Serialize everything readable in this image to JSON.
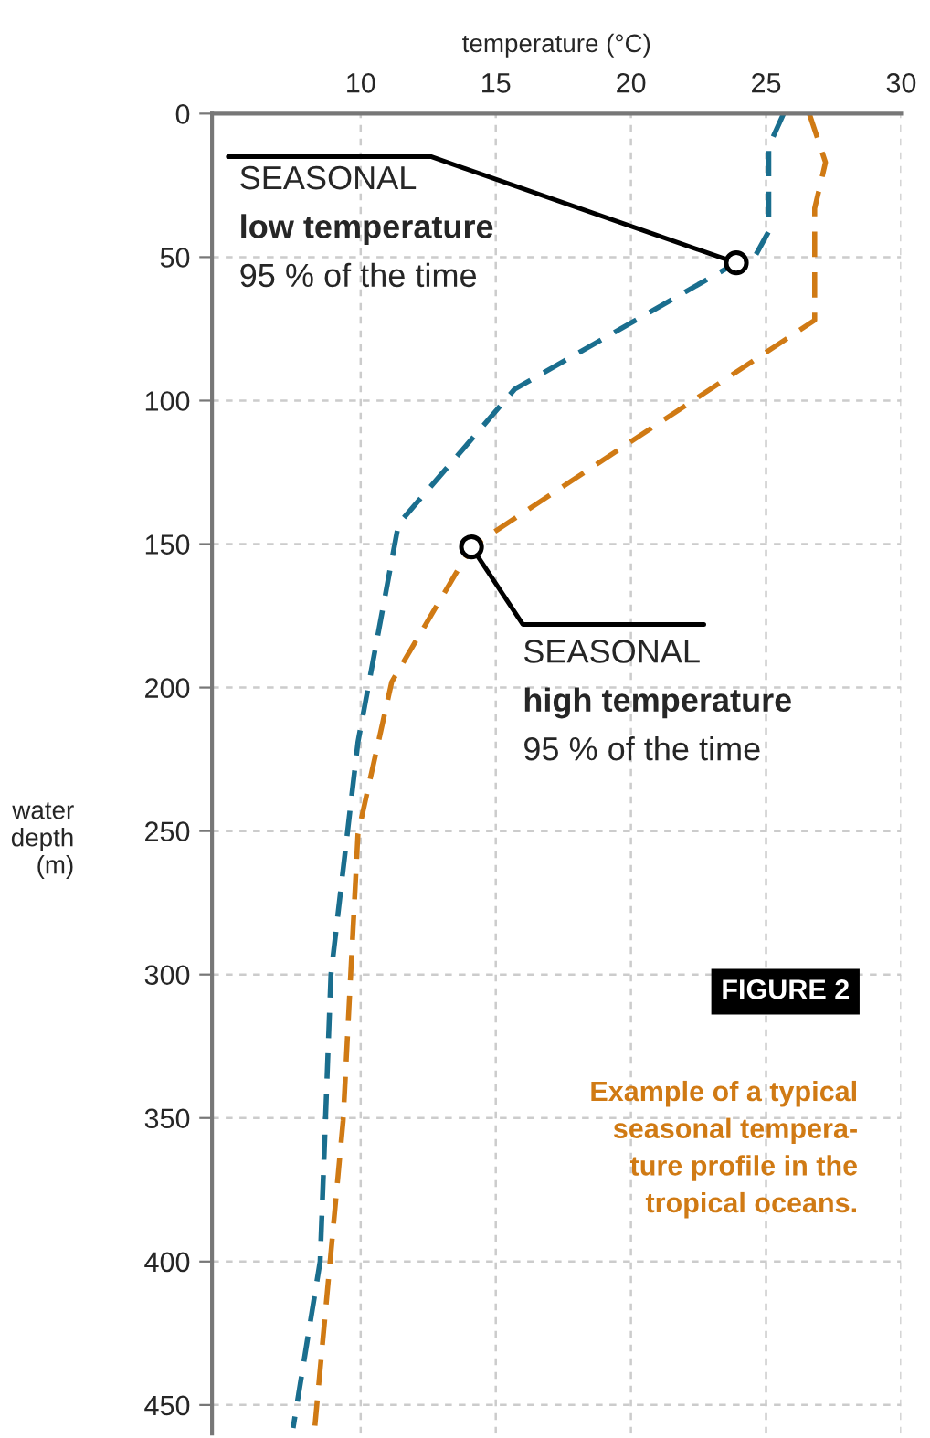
{
  "chart_data": {
    "type": "line",
    "title": "Example of a typical\nseasonal tempera-\nture profile in the\ntropical oceans.",
    "subtitle": "FIGURE 2",
    "xlabel": "temperature (°C)",
    "ylabel": "water\ndepth\n(m)",
    "series": [
      {
        "color": "#1a6e8e",
        "x": [
          25.65,
          25.1,
          25.1,
          24.6,
          23.9,
          15.7,
          11.4,
          9.9,
          8.9,
          8.5,
          7.5
        ],
        "values": [
          0,
          11.5,
          41,
          49.6,
          52,
          96,
          143,
          219,
          300,
          400,
          458
        ]
      },
      {
        "color": "#d07a14",
        "x": [
          26.6,
          27.2,
          26.8,
          26.8,
          14.1,
          11.15,
          9.9,
          9.35,
          8.3
        ],
        "values": [
          0,
          17,
          33,
          72,
          151,
          198,
          251,
          351,
          458
        ]
      }
    ],
    "annotations": [
      {
        "text": "SEASONAL",
        "x": 23.9,
        "y": 52
      },
      "low temperature",
      "95 % of the time",
      {
        "text": "SEASONAL",
        "x": 14.1,
        "y": 151
      },
      "high temperature",
      "95 % of the time"
    ],
    "xlim": [
      4.5,
      30
    ],
    "ylim": [
      460,
      0
    ],
    "xticks": [
      10,
      15,
      20,
      25,
      30
    ],
    "yticks": [
      0,
      50,
      100,
      150,
      200,
      250,
      300,
      350,
      400,
      450
    ],
    "grid": true,
    "legend": false,
    "line_style": "dashed",
    "marker": "none"
  }
}
